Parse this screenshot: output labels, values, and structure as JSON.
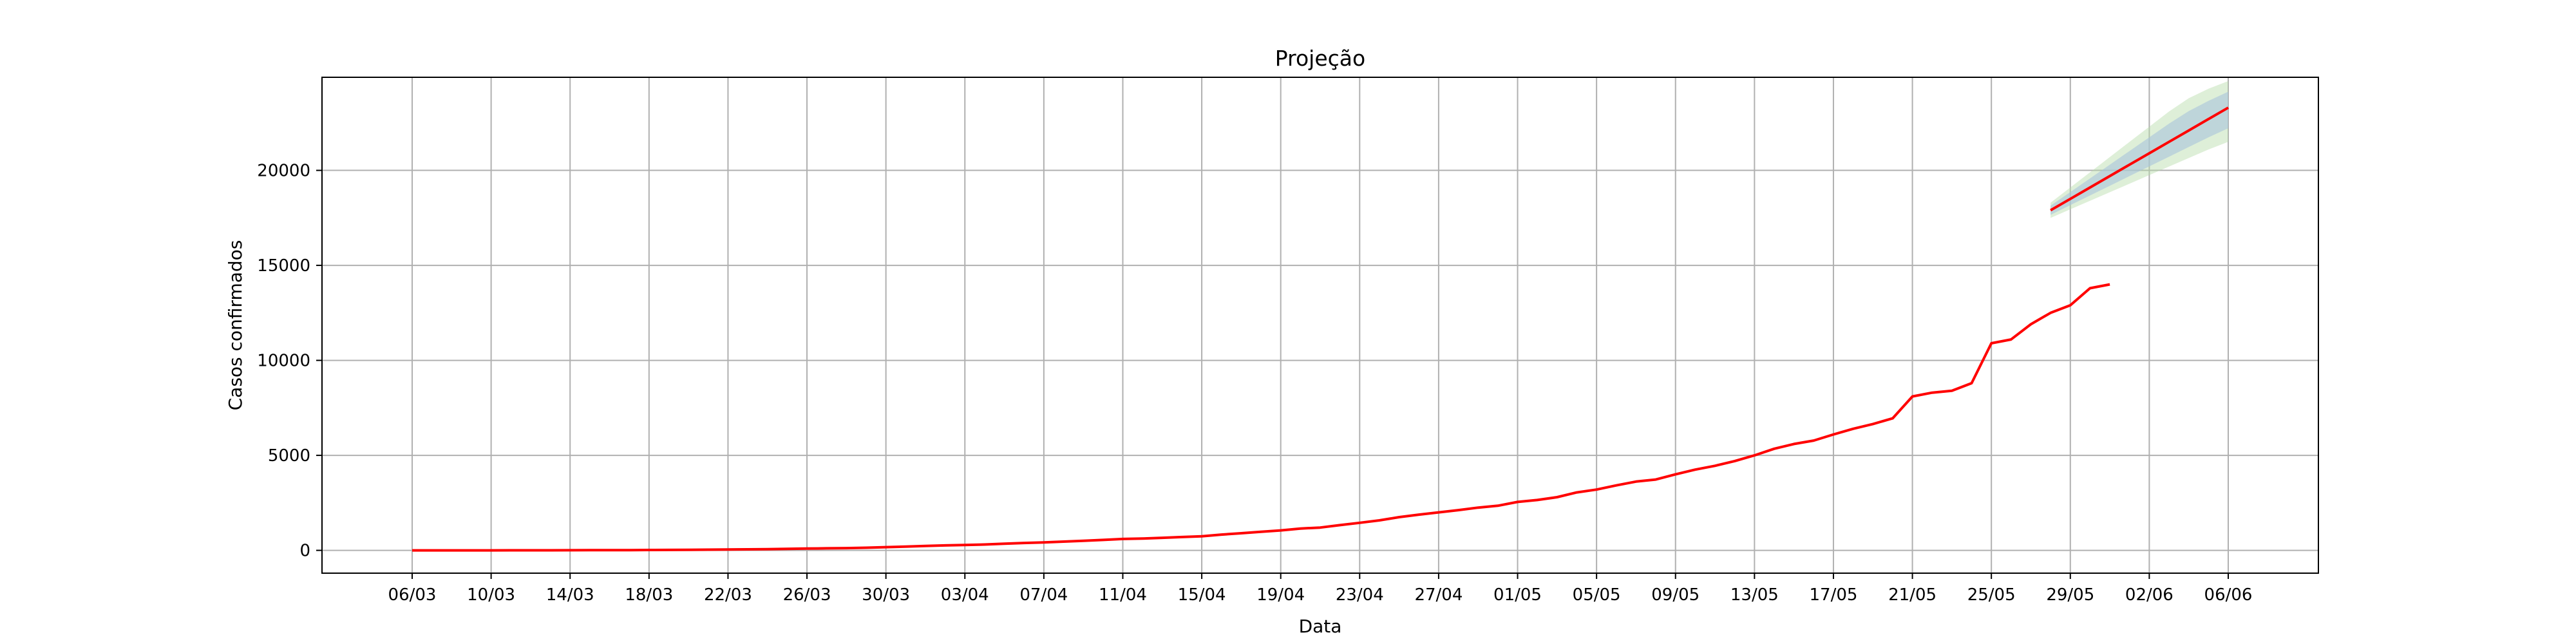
{
  "chart_data": {
    "type": "line",
    "title": "Projeção",
    "xlabel": "Data",
    "ylabel": "Casos confirmados",
    "x_tick_labels": [
      "06/03",
      "10/03",
      "14/03",
      "18/03",
      "22/03",
      "26/03",
      "30/03",
      "03/04",
      "07/04",
      "11/04",
      "15/04",
      "19/04",
      "23/04",
      "27/04",
      "01/05",
      "05/05",
      "09/05",
      "13/05",
      "17/05",
      "21/05",
      "25/05",
      "29/05",
      "02/06",
      "06/06"
    ],
    "y_ticks": [
      0,
      5000,
      10000,
      15000,
      20000
    ],
    "ylim": [
      -1200,
      24900
    ],
    "grid": true,
    "colors": {
      "series": "#ff0000",
      "band_outer": "#b5dba8",
      "band_inner": "#a9c3dc",
      "grid": "#b0b0b0"
    },
    "series": [
      {
        "type": "observed",
        "x": [
          "06/03",
          "07/03",
          "08/03",
          "09/03",
          "10/03",
          "11/03",
          "12/03",
          "13/03",
          "14/03",
          "15/03",
          "16/03",
          "17/03",
          "18/03",
          "19/03",
          "20/03",
          "21/03",
          "22/03",
          "23/03",
          "24/03",
          "25/03",
          "26/03",
          "27/03",
          "28/03",
          "29/03",
          "30/03",
          "31/03",
          "01/04",
          "02/04",
          "03/04",
          "04/04",
          "05/04",
          "06/04",
          "07/04",
          "08/04",
          "09/04",
          "10/04",
          "11/04",
          "12/04",
          "13/04",
          "14/04",
          "15/04",
          "16/04",
          "17/04",
          "18/04",
          "19/04",
          "20/04",
          "21/04",
          "22/04",
          "23/04",
          "24/04",
          "25/04",
          "26/04",
          "27/04",
          "28/04",
          "29/04",
          "30/04",
          "01/05",
          "02/05",
          "03/05",
          "04/05",
          "05/05",
          "06/05",
          "07/05",
          "08/05",
          "09/05",
          "10/05",
          "11/05",
          "12/05",
          "13/05",
          "14/05",
          "15/05",
          "16/05",
          "17/05",
          "18/05",
          "19/05",
          "20/05",
          "21/05",
          "22/05",
          "23/05",
          "24/05",
          "25/05",
          "26/05",
          "27/05",
          "28/05",
          "29/05",
          "30/05",
          "31/05"
        ],
        "values": [
          0,
          0,
          0,
          0,
          1,
          2,
          3,
          5,
          8,
          10,
          12,
          15,
          20,
          25,
          30,
          38,
          45,
          55,
          65,
          80,
          95,
          110,
          120,
          140,
          170,
          200,
          230,
          260,
          280,
          310,
          350,
          390,
          420,
          460,
          500,
          550,
          600,
          620,
          660,
          700,
          740,
          830,
          900,
          980,
          1050,
          1150,
          1200,
          1330,
          1450,
          1580,
          1750,
          1880,
          2000,
          2120,
          2250,
          2350,
          2550,
          2650,
          2800,
          3050,
          3200,
          3420,
          3620,
          3730,
          4000,
          4250,
          4450,
          4700,
          5000,
          5350,
          5600,
          5780,
          6100,
          6400,
          6650,
          6950,
          8100,
          8300,
          8400,
          8800,
          10900,
          11100,
          11900,
          12500,
          12900,
          13800,
          14000
        ]
      },
      {
        "type": "projection",
        "x": [
          "28/05",
          "29/05",
          "30/05",
          "31/05",
          "01/06",
          "02/06",
          "03/06",
          "04/06",
          "05/06",
          "06/06"
        ],
        "values": [
          17900,
          18500,
          19100,
          19700,
          20300,
          20900,
          21500,
          22100,
          22700,
          23300
        ],
        "lower": [
          17500,
          17950,
          18400,
          18850,
          19300,
          19750,
          20200,
          20650,
          21100,
          21500
        ],
        "upper": [
          18300,
          19100,
          19900,
          20700,
          21500,
          22300,
          23100,
          23800,
          24300,
          24700
        ]
      }
    ]
  }
}
